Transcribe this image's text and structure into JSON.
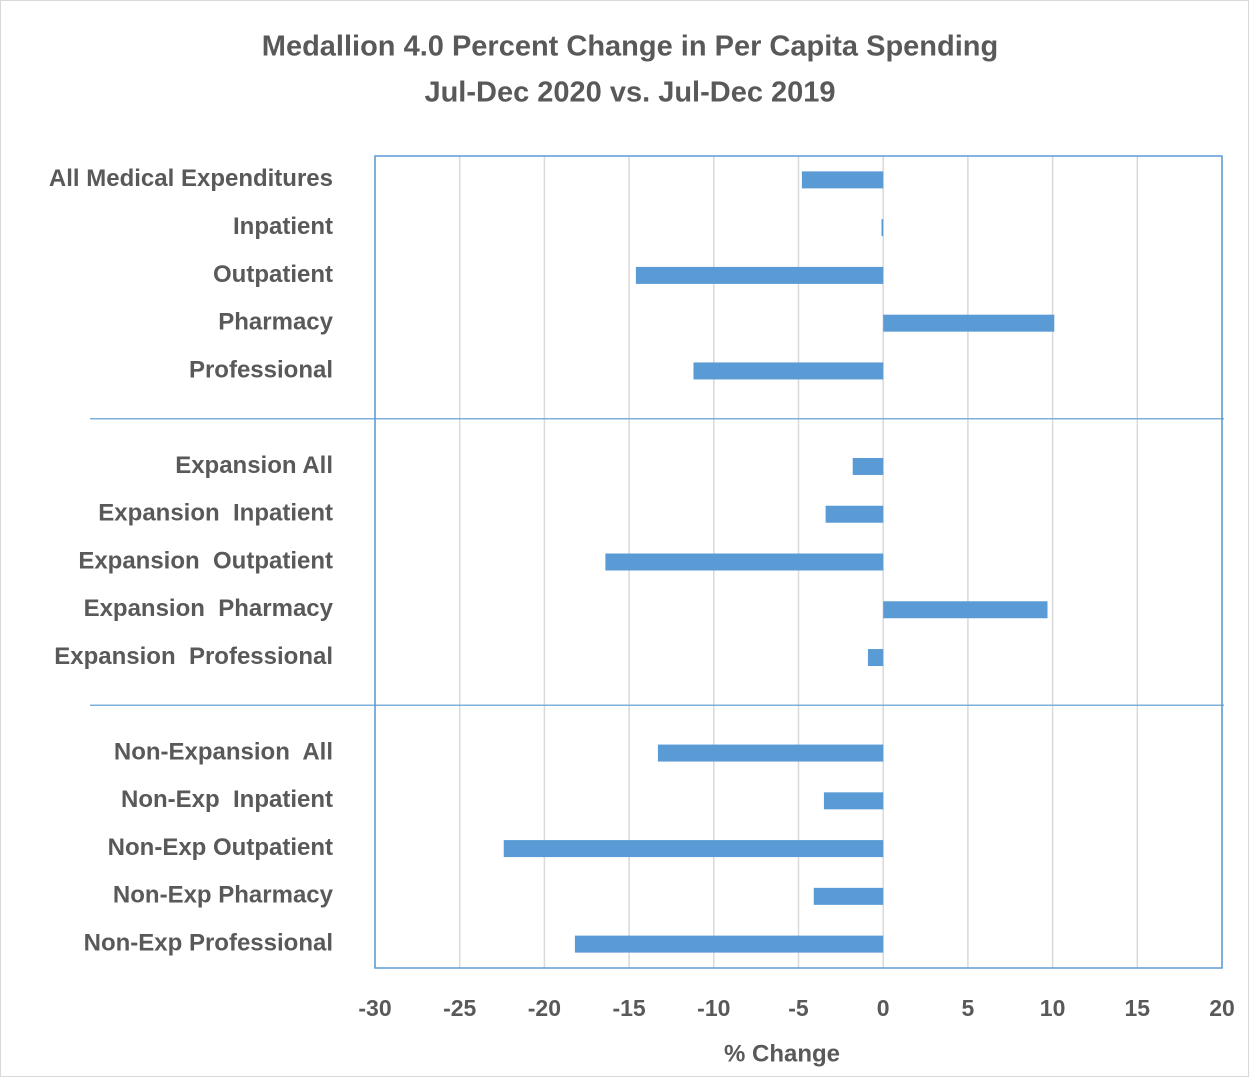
{
  "chart_data": {
    "type": "barh",
    "title": "Medallion 4.0 Percent Change in Per Capita Spending",
    "subtitle": "Jul-Dec 2020 vs. Jul-Dec 2019",
    "x_label": "% Change",
    "categories": [
      "All Medical Expenditures",
      "Inpatient",
      "Outpatient",
      "Pharmacy",
      "Professional",
      null,
      "Expansion All",
      "Expansion  Inpatient",
      "Expansion  Outpatient",
      "Expansion  Pharmacy",
      "Expansion  Professional",
      null,
      "Non-Expansion  All",
      "Non-Exp  Inpatient",
      "Non-Exp Outpatient",
      "Non-Exp Pharmacy",
      "Non-Exp Professional"
    ],
    "values": [
      -4.8,
      -0.1,
      -14.6,
      10.1,
      -11.2,
      null,
      -1.8,
      -3.4,
      -16.4,
      9.7,
      -0.9,
      null,
      -13.3,
      -3.5,
      -22.4,
      -4.1,
      -18.2
    ],
    "color": "#5b9bd5",
    "xlim": [
      -30,
      20
    ],
    "xticks": [
      -30,
      -25,
      -20,
      -15,
      -10,
      -5,
      0,
      5,
      10,
      15,
      20
    ],
    "grid": true
  }
}
